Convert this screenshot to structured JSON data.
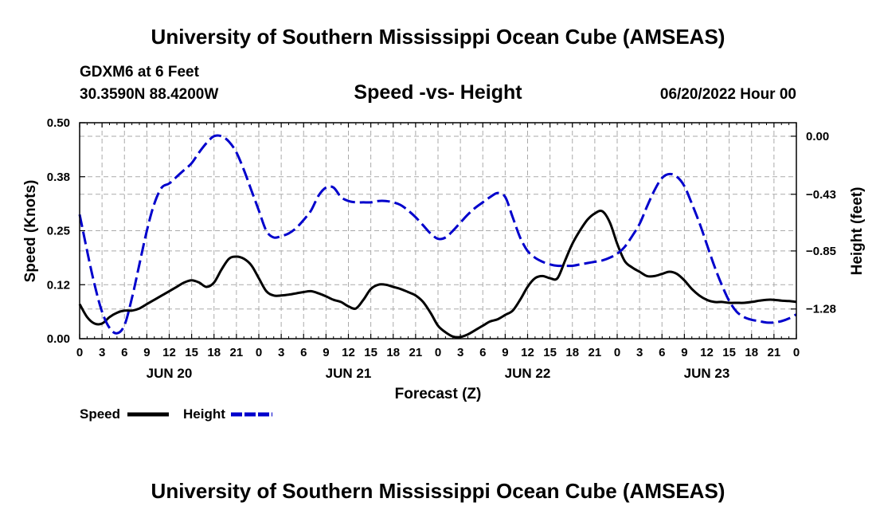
{
  "header": {
    "title": "University of Southern Mississippi Ocean Cube (AMSEAS)",
    "station": "GDXM6 at 6 Feet",
    "location": "30.3590N  88.4200W",
    "subtitle": "Speed -vs- Height",
    "datetime": "06/20/2022 Hour 00"
  },
  "footer": {
    "title": "University of Southern Mississippi Ocean Cube (AMSEAS)"
  },
  "chart_data": {
    "type": "line",
    "title": "Speed -vs- Height",
    "xlabel": "Forecast (Z)",
    "ylabel": "Speed (Knots)",
    "y2label": "Height (feet)",
    "x_range": [
      0,
      96
    ],
    "x_tick_labels": [
      "0",
      "3",
      "6",
      "9",
      "12",
      "15",
      "18",
      "21",
      "0",
      "3",
      "6",
      "9",
      "12",
      "15",
      "18",
      "21",
      "0",
      "3",
      "6",
      "9",
      "12",
      "15",
      "18",
      "21",
      "0",
      "3",
      "6",
      "9",
      "12",
      "15",
      "18",
      "21",
      "0"
    ],
    "date_labels": [
      {
        "label": "JUN 20",
        "hour": 12
      },
      {
        "label": "JUN 21",
        "hour": 36
      },
      {
        "label": "JUN 22",
        "hour": 60
      },
      {
        "label": "JUN 23",
        "hour": 84
      }
    ],
    "y_left": {
      "range": [
        0,
        0.5
      ],
      "ticks": [
        0.0,
        0.125,
        0.25,
        0.375,
        0.5
      ],
      "tick_labels": [
        "0.00",
        "0.12",
        "0.25",
        "0.38",
        "0.50"
      ]
    },
    "y_right": {
      "range": [
        -1.5,
        0.1
      ],
      "ticks": [
        0.0,
        -0.43,
        -0.85,
        -1.28
      ],
      "tick_labels": [
        "0.00",
        "−0.43",
        "−0.85",
        "−1.28"
      ]
    },
    "grid": true,
    "legend_position": "bottom-left",
    "series": [
      {
        "name": "Speed",
        "axis": "left",
        "color": "#000000",
        "style": "solid",
        "x": [
          0,
          1,
          2,
          3,
          4,
          5,
          6,
          7,
          8,
          9,
          10,
          11,
          12,
          13,
          14,
          15,
          16,
          17,
          18,
          19,
          20,
          21,
          22,
          23,
          24,
          25,
          26,
          27,
          28,
          29,
          30,
          31,
          32,
          33,
          34,
          35,
          36,
          37,
          38,
          39,
          40,
          41,
          42,
          43,
          44,
          45,
          46,
          47,
          48,
          49,
          50,
          51,
          52,
          53,
          54,
          55,
          56,
          57,
          58,
          59,
          60,
          61,
          62,
          63,
          64,
          65,
          66,
          67,
          68,
          69,
          70,
          71,
          72,
          73,
          74,
          75,
          76,
          77,
          78,
          79,
          80,
          81,
          82,
          83,
          84,
          85,
          86,
          87,
          88,
          89,
          90,
          91,
          92,
          93,
          94,
          95,
          96
        ],
        "y": [
          0.08,
          0.05,
          0.035,
          0.035,
          0.05,
          0.06,
          0.065,
          0.065,
          0.07,
          0.08,
          0.09,
          0.1,
          0.11,
          0.12,
          0.13,
          0.135,
          0.13,
          0.12,
          0.13,
          0.16,
          0.185,
          0.19,
          0.185,
          0.17,
          0.14,
          0.11,
          0.1,
          0.1,
          0.102,
          0.105,
          0.108,
          0.11,
          0.105,
          0.098,
          0.09,
          0.085,
          0.075,
          0.07,
          0.09,
          0.115,
          0.125,
          0.125,
          0.12,
          0.115,
          0.108,
          0.1,
          0.085,
          0.06,
          0.03,
          0.015,
          0.005,
          0.004,
          0.01,
          0.02,
          0.03,
          0.04,
          0.045,
          0.055,
          0.065,
          0.09,
          0.12,
          0.14,
          0.145,
          0.14,
          0.14,
          0.18,
          0.22,
          0.25,
          0.275,
          0.29,
          0.295,
          0.27,
          0.22,
          0.18,
          0.165,
          0.155,
          0.145,
          0.145,
          0.15,
          0.155,
          0.15,
          0.135,
          0.115,
          0.1,
          0.09,
          0.085,
          0.085,
          0.083,
          0.083,
          0.083,
          0.085,
          0.088,
          0.09,
          0.09,
          0.088,
          0.087,
          0.085
        ]
      },
      {
        "name": "Height",
        "axis": "right",
        "color": "#0000cc",
        "style": "dashed",
        "x": [
          0,
          1,
          2,
          3,
          4,
          5,
          6,
          7,
          8,
          9,
          10,
          11,
          12,
          13,
          14,
          15,
          16,
          17,
          18,
          19,
          20,
          21,
          22,
          23,
          24,
          25,
          26,
          27,
          28,
          29,
          30,
          31,
          32,
          33,
          34,
          35,
          36,
          37,
          38,
          39,
          40,
          41,
          42,
          43,
          44,
          45,
          46,
          47,
          48,
          49,
          50,
          51,
          52,
          53,
          54,
          55,
          56,
          57,
          58,
          59,
          60,
          61,
          62,
          63,
          64,
          65,
          66,
          67,
          68,
          69,
          70,
          71,
          72,
          73,
          74,
          75,
          76,
          77,
          78,
          79,
          80,
          81,
          82,
          83,
          84,
          85,
          86,
          87,
          88,
          89,
          90,
          91,
          92,
          93,
          94,
          95,
          96
        ],
        "y": [
          -0.58,
          -0.85,
          -1.1,
          -1.3,
          -1.42,
          -1.46,
          -1.4,
          -1.2,
          -0.95,
          -0.7,
          -0.5,
          -0.38,
          -0.35,
          -0.3,
          -0.25,
          -0.2,
          -0.12,
          -0.05,
          0.0,
          0.0,
          -0.04,
          -0.12,
          -0.25,
          -0.4,
          -0.55,
          -0.7,
          -0.75,
          -0.74,
          -0.72,
          -0.68,
          -0.62,
          -0.55,
          -0.44,
          -0.38,
          -0.38,
          -0.45,
          -0.48,
          -0.49,
          -0.49,
          -0.49,
          -0.48,
          -0.48,
          -0.49,
          -0.51,
          -0.55,
          -0.6,
          -0.66,
          -0.72,
          -0.76,
          -0.75,
          -0.7,
          -0.64,
          -0.58,
          -0.53,
          -0.49,
          -0.45,
          -0.42,
          -0.45,
          -0.6,
          -0.75,
          -0.85,
          -0.9,
          -0.93,
          -0.95,
          -0.96,
          -0.96,
          -0.96,
          -0.95,
          -0.94,
          -0.93,
          -0.92,
          -0.9,
          -0.87,
          -0.82,
          -0.74,
          -0.65,
          -0.52,
          -0.4,
          -0.31,
          -0.28,
          -0.3,
          -0.37,
          -0.5,
          -0.64,
          -0.8,
          -0.96,
          -1.1,
          -1.22,
          -1.3,
          -1.34,
          -1.36,
          -1.37,
          -1.38,
          -1.38,
          -1.37,
          -1.35,
          -1.32
        ]
      }
    ]
  }
}
